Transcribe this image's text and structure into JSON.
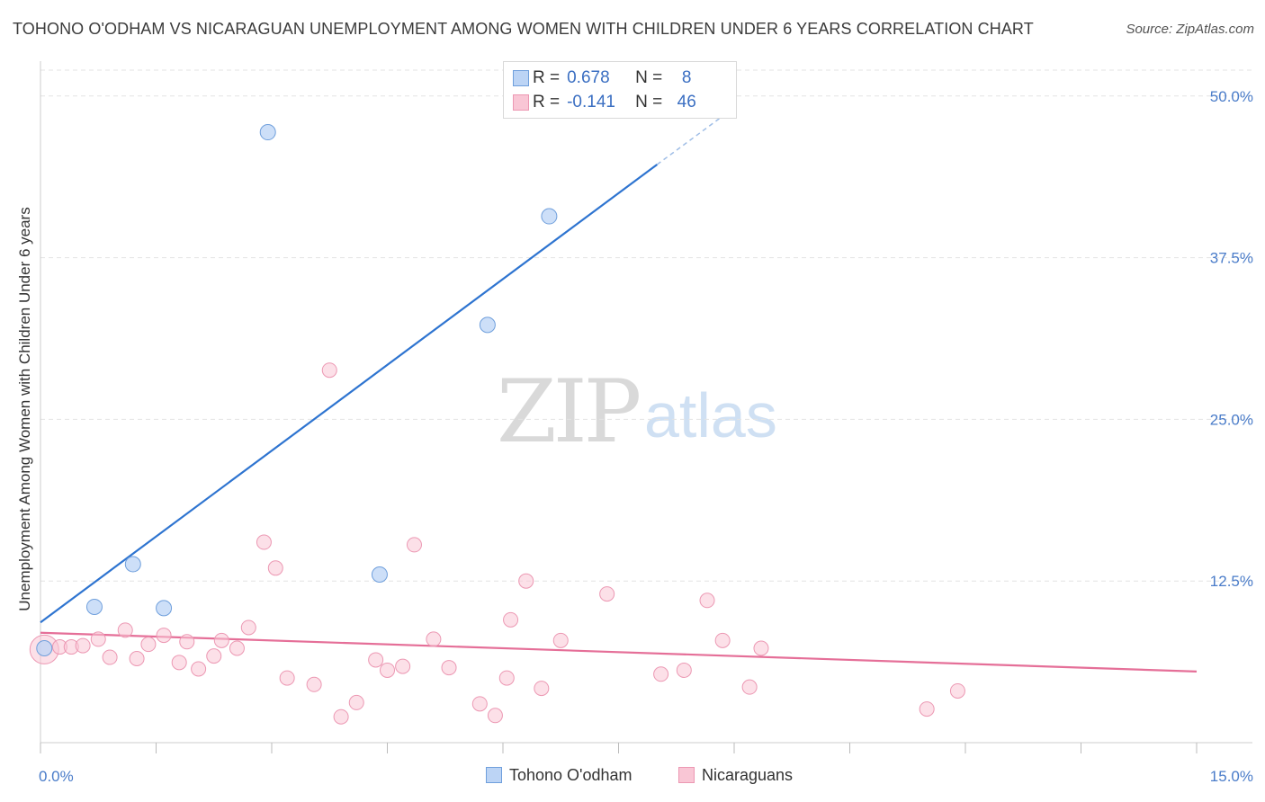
{
  "title": "TOHONO O'ODHAM VS NICARAGUAN UNEMPLOYMENT AMONG WOMEN WITH CHILDREN UNDER 6 YEARS CORRELATION CHART",
  "source": "Source: ZipAtlas.com",
  "watermark": {
    "zip": "ZIP",
    "atlas": "atlas"
  },
  "legend": {
    "rows": [
      {
        "r_label": "R =",
        "r_value": "0.678",
        "n_label": "N =",
        "n_value": "8"
      },
      {
        "r_label": "R =",
        "r_value": "-0.141",
        "n_label": "N =",
        "n_value": "46"
      }
    ]
  },
  "bottom_legend": [
    "Tohono O'odham",
    "Nicaraguans"
  ],
  "colors": {
    "blue_fill": "#bcd4f5",
    "blue_stroke": "#6f9fdc",
    "blue_line": "#2e74d0",
    "pink_fill": "#f9c6d5",
    "pink_stroke": "#ec98b3",
    "pink_line": "#e56f98",
    "tick_text": "#4a7cc9",
    "grid": "#e3e3e3"
  },
  "chart_data": {
    "type": "scatter",
    "title": "TOHONO O'ODHAM VS NICARAGUAN UNEMPLOYMENT AMONG WOMEN WITH CHILDREN UNDER 6 YEARS CORRELATION CHART",
    "xlabel": "",
    "ylabel": "Unemployment Among Women with Children Under 6 years",
    "xlim": [
      0,
      15
    ],
    "ylim": [
      0,
      52
    ],
    "x_tick_labels": [
      "0.0%",
      "15.0%"
    ],
    "y_ticks": [
      12.5,
      25.0,
      37.5,
      50.0
    ],
    "y_tick_labels": [
      "12.5%",
      "25.0%",
      "37.5%",
      "50.0%"
    ],
    "series": [
      {
        "name": "Tohono O'odham",
        "R": 0.678,
        "N": 8,
        "points": [
          [
            0.05,
            7.3
          ],
          [
            0.7,
            10.5
          ],
          [
            1.2,
            13.8
          ],
          [
            1.6,
            10.4
          ],
          [
            2.95,
            47.2
          ],
          [
            4.4,
            13.0
          ],
          [
            5.8,
            32.3
          ],
          [
            6.6,
            40.7
          ]
        ],
        "trend": {
          "x0": 0.0,
          "y0": 9.3,
          "x1": 8.0,
          "y1": 44.7,
          "dash_to_x": 9.0,
          "dash_to_y": 49.1
        }
      },
      {
        "name": "Nicaraguans",
        "R": -0.141,
        "N": 46,
        "points": [
          [
            0.05,
            7.2
          ],
          [
            0.25,
            7.4
          ],
          [
            0.4,
            7.4
          ],
          [
            0.55,
            7.5
          ],
          [
            0.75,
            8.0
          ],
          [
            0.9,
            6.6
          ],
          [
            1.1,
            8.7
          ],
          [
            1.25,
            6.5
          ],
          [
            1.4,
            7.6
          ],
          [
            1.6,
            8.3
          ],
          [
            1.8,
            6.2
          ],
          [
            1.9,
            7.8
          ],
          [
            2.05,
            5.7
          ],
          [
            2.25,
            6.7
          ],
          [
            2.35,
            7.9
          ],
          [
            2.55,
            7.3
          ],
          [
            2.7,
            8.9
          ],
          [
            2.9,
            15.5
          ],
          [
            3.05,
            13.5
          ],
          [
            3.2,
            5.0
          ],
          [
            3.55,
            4.5
          ],
          [
            3.75,
            28.8
          ],
          [
            3.9,
            2.0
          ],
          [
            4.1,
            3.1
          ],
          [
            4.35,
            6.4
          ],
          [
            4.5,
            5.6
          ],
          [
            4.7,
            5.9
          ],
          [
            4.85,
            15.3
          ],
          [
            5.1,
            8.0
          ],
          [
            5.3,
            5.8
          ],
          [
            5.7,
            3.0
          ],
          [
            5.9,
            2.1
          ],
          [
            6.05,
            5.0
          ],
          [
            6.1,
            9.5
          ],
          [
            6.3,
            12.5
          ],
          [
            6.5,
            4.2
          ],
          [
            6.75,
            7.9
          ],
          [
            7.35,
            11.5
          ],
          [
            8.05,
            5.3
          ],
          [
            8.35,
            5.6
          ],
          [
            8.65,
            11.0
          ],
          [
            8.85,
            7.9
          ],
          [
            9.2,
            4.3
          ],
          [
            9.35,
            7.3
          ],
          [
            11.5,
            2.6
          ],
          [
            11.9,
            4.0
          ]
        ],
        "trend": {
          "x0": 0.0,
          "y0": 8.5,
          "x1": 15.0,
          "y1": 5.5
        }
      }
    ]
  }
}
